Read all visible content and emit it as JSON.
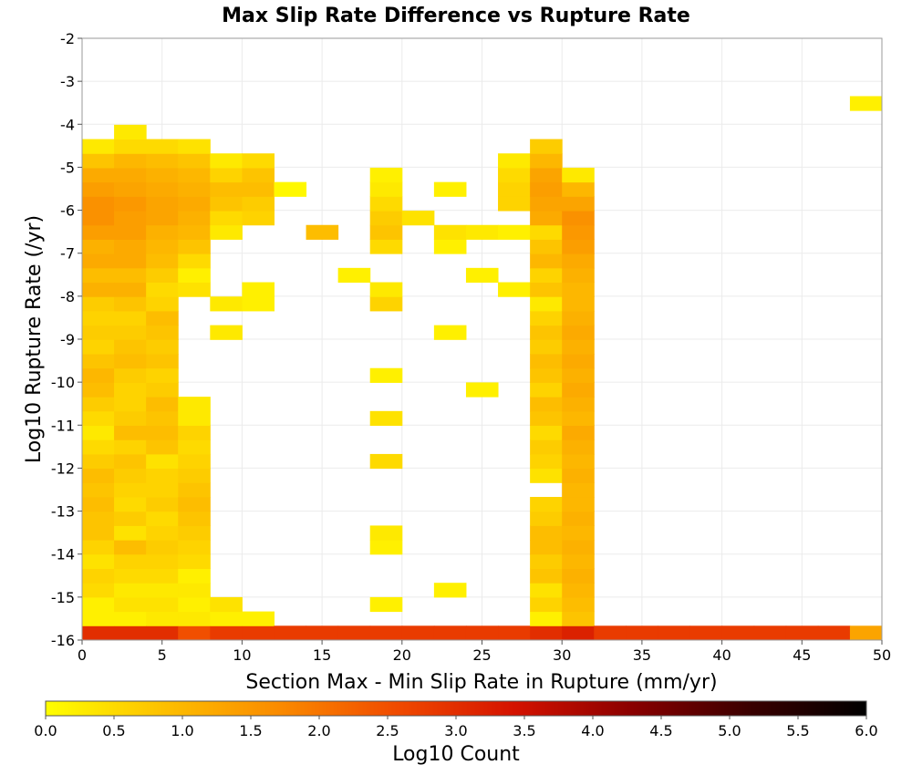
{
  "chart_data": {
    "type": "heatmap",
    "title": "Max Slip Rate Difference vs Rupture Rate",
    "xlabel": "Section Max - Min Slip Rate in Rupture (mm/yr)",
    "ylabel": "Log10 Rupture Rate (/yr)",
    "xlim": [
      0,
      50
    ],
    "ylim": [
      -16,
      -2
    ],
    "x_ticks": [
      0,
      5,
      10,
      15,
      20,
      25,
      30,
      35,
      40,
      45,
      50
    ],
    "y_ticks": [
      -2,
      -3,
      -4,
      -5,
      -6,
      -7,
      -8,
      -9,
      -10,
      -11,
      -12,
      -13,
      -14,
      -15,
      -16
    ],
    "x_bin_width": 2,
    "y_bin_height": 0.333,
    "grid": true,
    "colorbar": {
      "label": "Log10 Count",
      "min": 0,
      "max": 6,
      "ticks": [
        "0.0",
        "0.5",
        "1.0",
        "1.5",
        "2.0",
        "2.5",
        "3.0",
        "3.5",
        "4.0",
        "4.5",
        "5.0",
        "5.5",
        "6.0"
      ],
      "stops": [
        "#ffff00",
        "#fdc000",
        "#fa8a00",
        "#f04a00",
        "#d41200",
        "#8a0000",
        "#3a0000",
        "#000000"
      ]
    },
    "columns": [
      {
        "x": 0,
        "values": [
          3.0,
          0.2,
          0.2,
          0.5,
          0.6,
          0.4,
          0.6,
          0.8,
          0.8,
          0.9,
          0.8,
          0.9,
          0.7,
          0.5,
          0.3,
          0.5,
          0.7,
          0.9,
          1.0,
          0.8,
          0.6,
          0.7,
          0.6,
          0.7,
          1.1,
          0.9,
          1.2,
          1.1,
          1.4,
          1.6,
          1.6,
          1.4,
          1.2,
          0.8,
          0.3,
          null,
          null,
          null,
          null,
          null,
          null,
          null
        ]
      },
      {
        "x": 2,
        "values": [
          3.0,
          0.2,
          0.4,
          0.3,
          0.5,
          0.6,
          0.9,
          0.4,
          0.7,
          0.5,
          0.6,
          0.7,
          0.8,
          0.6,
          0.9,
          0.7,
          0.6,
          0.6,
          0.7,
          0.9,
          0.8,
          0.7,
          0.6,
          0.8,
          1.1,
          0.9,
          1.2,
          1.2,
          1.4,
          1.4,
          1.5,
          1.3,
          1.2,
          1.0,
          0.5,
          0.3,
          null,
          null,
          null,
          null,
          null,
          null
        ]
      },
      {
        "x": 4,
        "values": [
          3.0,
          0.3,
          0.4,
          0.3,
          0.5,
          0.6,
          0.7,
          0.6,
          0.5,
          0.7,
          0.6,
          0.6,
          0.4,
          0.8,
          0.9,
          0.8,
          0.9,
          0.7,
          0.6,
          0.8,
          0.7,
          0.8,
          0.9,
          0.6,
          0.5,
          0.7,
          0.9,
          1.0,
          1.1,
          1.3,
          1.3,
          1.2,
          1.1,
          0.9,
          0.5,
          null,
          null,
          null,
          null,
          null,
          null,
          null
        ]
      },
      {
        "x": 6,
        "values": [
          2.5,
          0.3,
          0.2,
          0.3,
          0.2,
          0.5,
          0.6,
          0.7,
          0.8,
          0.9,
          0.8,
          0.7,
          0.6,
          0.5,
          0.6,
          0.3,
          0.3,
          null,
          null,
          null,
          null,
          null,
          null,
          null,
          0.4,
          0.2,
          0.5,
          0.8,
          1.0,
          1.1,
          1.2,
          1.1,
          1.0,
          0.8,
          0.4,
          null,
          null,
          null,
          null,
          null,
          null,
          null
        ]
      },
      {
        "x": 8,
        "values": [
          2.8,
          0.2,
          0.4,
          null,
          null,
          null,
          null,
          null,
          null,
          null,
          null,
          null,
          null,
          null,
          null,
          null,
          null,
          null,
          null,
          null,
          null,
          0.3,
          null,
          0.3,
          null,
          null,
          null,
          null,
          0.3,
          0.5,
          0.8,
          0.9,
          0.6,
          0.3,
          null,
          null,
          null,
          null,
          null,
          null,
          null,
          null
        ]
      },
      {
        "x": 10,
        "values": [
          2.8,
          0.2,
          null,
          null,
          null,
          null,
          null,
          null,
          null,
          null,
          null,
          null,
          null,
          null,
          null,
          null,
          null,
          null,
          null,
          null,
          null,
          null,
          null,
          0.2,
          0.2,
          null,
          null,
          null,
          null,
          0.6,
          0.7,
          0.9,
          0.8,
          0.5,
          null,
          null,
          null,
          null,
          null,
          null,
          null,
          null
        ]
      },
      {
        "x": 12,
        "values": [
          2.8,
          null,
          null,
          null,
          null,
          null,
          null,
          null,
          null,
          null,
          null,
          null,
          null,
          null,
          null,
          null,
          null,
          null,
          null,
          null,
          null,
          null,
          null,
          null,
          null,
          null,
          null,
          null,
          null,
          null,
          null,
          0.1,
          null,
          null,
          null,
          null,
          null,
          null,
          null,
          null,
          null,
          null
        ]
      },
      {
        "x": 14,
        "values": [
          2.8,
          null,
          null,
          null,
          null,
          null,
          null,
          null,
          null,
          null,
          null,
          null,
          null,
          null,
          null,
          null,
          null,
          null,
          null,
          null,
          null,
          null,
          null,
          null,
          null,
          null,
          null,
          null,
          0.9,
          null,
          null,
          null,
          null,
          null,
          null,
          null,
          null,
          null,
          null,
          null,
          null,
          null
        ]
      },
      {
        "x": 16,
        "values": [
          2.8,
          null,
          null,
          null,
          null,
          null,
          null,
          null,
          null,
          null,
          null,
          null,
          null,
          null,
          null,
          null,
          null,
          null,
          null,
          null,
          null,
          null,
          null,
          null,
          null,
          0.2,
          null,
          null,
          null,
          null,
          null,
          null,
          null,
          null,
          null,
          null,
          null,
          null,
          null,
          null,
          null,
          null
        ]
      },
      {
        "x": 18,
        "values": [
          2.8,
          null,
          0.2,
          null,
          null,
          null,
          0.2,
          0.3,
          null,
          null,
          null,
          null,
          0.5,
          null,
          null,
          0.4,
          null,
          null,
          0.2,
          null,
          null,
          null,
          null,
          0.6,
          0.3,
          null,
          null,
          0.5,
          0.8,
          0.7,
          0.5,
          0.3,
          0.2,
          null,
          null,
          null,
          null,
          null,
          null,
          null,
          null,
          null
        ]
      },
      {
        "x": 20,
        "values": [
          2.8,
          null,
          null,
          null,
          null,
          null,
          null,
          null,
          null,
          null,
          null,
          null,
          null,
          null,
          null,
          null,
          null,
          null,
          null,
          null,
          null,
          null,
          null,
          null,
          null,
          null,
          null,
          null,
          null,
          0.4,
          null,
          null,
          null,
          null,
          null,
          null,
          null,
          null,
          null,
          null,
          null,
          null
        ]
      },
      {
        "x": 22,
        "values": [
          2.8,
          null,
          null,
          0.2,
          null,
          null,
          null,
          null,
          null,
          null,
          null,
          null,
          null,
          null,
          null,
          null,
          null,
          null,
          null,
          null,
          null,
          0.2,
          null,
          null,
          null,
          null,
          null,
          0.2,
          0.4,
          null,
          null,
          0.2,
          null,
          null,
          null,
          null,
          null,
          null,
          null,
          null,
          null,
          null
        ]
      },
      {
        "x": 24,
        "values": [
          2.8,
          null,
          null,
          null,
          null,
          null,
          null,
          null,
          null,
          null,
          null,
          null,
          null,
          null,
          null,
          null,
          null,
          0.2,
          null,
          null,
          null,
          null,
          null,
          null,
          null,
          0.2,
          null,
          null,
          0.3,
          null,
          null,
          null,
          null,
          null,
          null,
          null,
          null,
          null,
          null,
          null,
          null,
          null
        ]
      },
      {
        "x": 26,
        "values": [
          2.8,
          null,
          null,
          null,
          null,
          null,
          null,
          null,
          null,
          null,
          null,
          null,
          null,
          null,
          null,
          null,
          null,
          null,
          null,
          null,
          null,
          null,
          null,
          null,
          0.2,
          null,
          null,
          null,
          0.2,
          null,
          0.6,
          0.6,
          0.5,
          0.3,
          null,
          null,
          null,
          null,
          null,
          null,
          null,
          null
        ]
      },
      {
        "x": 28,
        "values": [
          3.0,
          0.2,
          0.6,
          0.4,
          0.8,
          0.7,
          0.9,
          0.9,
          0.7,
          0.6,
          null,
          0.4,
          0.6,
          0.7,
          0.5,
          0.8,
          0.9,
          0.6,
          0.8,
          0.9,
          0.7,
          0.8,
          0.6,
          0.3,
          0.8,
          0.6,
          1.0,
          0.8,
          0.5,
          1.2,
          1.3,
          1.4,
          1.3,
          1.0,
          0.7,
          null,
          null,
          null,
          null,
          null,
          null,
          null
        ]
      },
      {
        "x": 30,
        "values": [
          3.2,
          0.8,
          0.9,
          1.0,
          1.1,
          1.0,
          1.1,
          1.0,
          1.1,
          1.0,
          1.0,
          1.1,
          1.0,
          1.1,
          1.2,
          1.0,
          1.1,
          1.2,
          1.1,
          1.2,
          1.1,
          1.2,
          1.1,
          1.0,
          1.0,
          1.1,
          1.2,
          1.4,
          1.5,
          1.6,
          1.3,
          1.0,
          0.3,
          null,
          null,
          null,
          null,
          null,
          null,
          null,
          null,
          null
        ]
      },
      {
        "x": 32,
        "values": [
          2.8,
          null,
          null,
          null,
          null,
          null,
          null,
          null,
          null,
          null,
          null,
          null,
          null,
          null,
          null,
          null,
          null,
          null,
          null,
          null,
          null,
          null,
          null,
          null,
          null,
          null,
          null,
          null,
          null,
          null,
          null,
          null,
          null,
          null,
          null,
          null,
          null,
          null,
          null,
          null,
          null,
          null
        ]
      },
      {
        "x": 34,
        "values": [
          2.8,
          null,
          null,
          null,
          null,
          null,
          null,
          null,
          null,
          null,
          null,
          null,
          null,
          null,
          null,
          null,
          null,
          null,
          null,
          null,
          null,
          null,
          null,
          null,
          null,
          null,
          null,
          null,
          null,
          null,
          null,
          null,
          null,
          null,
          null,
          null,
          null,
          null,
          null,
          null,
          null,
          null
        ]
      },
      {
        "x": 36,
        "values": [
          2.8,
          null,
          null,
          null,
          null,
          null,
          null,
          null,
          null,
          null,
          null,
          null,
          null,
          null,
          null,
          null,
          null,
          null,
          null,
          null,
          null,
          null,
          null,
          null,
          null,
          null,
          null,
          null,
          null,
          null,
          null,
          null,
          null,
          null,
          null,
          null,
          null,
          null,
          null,
          null,
          null,
          null
        ]
      },
      {
        "x": 38,
        "values": [
          2.8,
          null,
          null,
          null,
          null,
          null,
          null,
          null,
          null,
          null,
          null,
          null,
          null,
          null,
          null,
          null,
          null,
          null,
          null,
          null,
          null,
          null,
          null,
          null,
          null,
          null,
          null,
          null,
          null,
          null,
          null,
          null,
          null,
          null,
          null,
          null,
          null,
          null,
          null,
          null,
          null,
          null
        ]
      },
      {
        "x": 40,
        "values": [
          2.8,
          null,
          null,
          null,
          null,
          null,
          null,
          null,
          null,
          null,
          null,
          null,
          null,
          null,
          null,
          null,
          null,
          null,
          null,
          null,
          null,
          null,
          null,
          null,
          null,
          null,
          null,
          null,
          null,
          null,
          null,
          null,
          null,
          null,
          null,
          null,
          null,
          null,
          null,
          null,
          null,
          null
        ]
      },
      {
        "x": 42,
        "values": [
          2.8,
          null,
          null,
          null,
          null,
          null,
          null,
          null,
          null,
          null,
          null,
          null,
          null,
          null,
          null,
          null,
          null,
          null,
          null,
          null,
          null,
          null,
          null,
          null,
          null,
          null,
          null,
          null,
          null,
          null,
          null,
          null,
          null,
          null,
          null,
          null,
          null,
          null,
          null,
          null,
          null,
          null
        ]
      },
      {
        "x": 44,
        "values": [
          2.8,
          null,
          null,
          null,
          null,
          null,
          null,
          null,
          null,
          null,
          null,
          null,
          null,
          null,
          null,
          null,
          null,
          null,
          null,
          null,
          null,
          null,
          null,
          null,
          null,
          null,
          null,
          null,
          null,
          null,
          null,
          null,
          null,
          null,
          null,
          null,
          null,
          null,
          null,
          null,
          null,
          null
        ]
      },
      {
        "x": 46,
        "values": [
          2.8,
          null,
          null,
          null,
          null,
          null,
          null,
          null,
          null,
          null,
          null,
          null,
          null,
          null,
          null,
          null,
          null,
          null,
          null,
          null,
          null,
          null,
          null,
          null,
          null,
          null,
          null,
          null,
          null,
          null,
          null,
          null,
          null,
          null,
          null,
          null,
          null,
          null,
          null,
          null,
          null,
          null
        ]
      },
      {
        "x": 48,
        "values": [
          1.3,
          null,
          null,
          null,
          null,
          null,
          null,
          null,
          null,
          null,
          null,
          null,
          null,
          null,
          null,
          null,
          null,
          null,
          null,
          null,
          null,
          null,
          null,
          null,
          null,
          null,
          null,
          null,
          null,
          null,
          null,
          null,
          null,
          null,
          null,
          null,
          null,
          0.2,
          null,
          null,
          null,
          null
        ]
      }
    ]
  }
}
